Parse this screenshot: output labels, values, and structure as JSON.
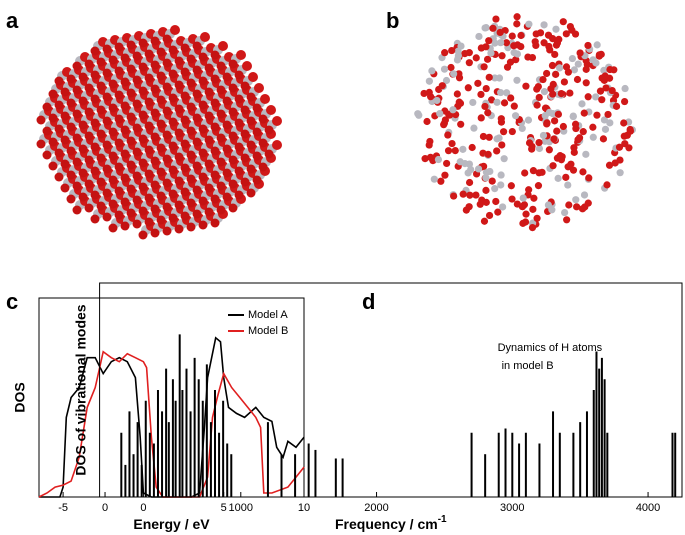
{
  "images": [
    {
      "panel_label": "a"
    },
    {
      "panel_label": "b"
    }
  ],
  "chart_data": [
    {
      "type": "line",
      "panel_label": "c",
      "xlabel": "Energy / eV",
      "ylabel": "DOS",
      "xlim": [
        -6.5,
        10
      ],
      "ylim": [
        0,
        1
      ],
      "xticks": [
        -5,
        0,
        5,
        10
      ],
      "legend": "top-right",
      "series": [
        {
          "name": "Model A",
          "color": "#000000",
          "x": [
            -6.5,
            -5.2,
            -5,
            -4.8,
            -4.5,
            -4,
            -3.5,
            -3,
            -2.5,
            -2,
            -1.5,
            -1,
            -0.5,
            -0.2,
            0,
            0.5,
            3,
            3.5,
            3.8,
            4,
            4.5,
            4.8,
            5,
            5.3,
            5.8,
            6.3,
            7,
            7.5,
            8,
            8.3,
            8.7,
            9,
            9.5,
            10
          ],
          "values": [
            0,
            0,
            0.05,
            0.4,
            0.5,
            0.55,
            0.7,
            0.7,
            0.62,
            0.68,
            0.7,
            0.68,
            0.6,
            0.3,
            0.02,
            0,
            0,
            0.02,
            0.35,
            0.6,
            0.8,
            0.78,
            0.6,
            0.45,
            0.42,
            0.4,
            0.45,
            0.4,
            0.38,
            0.25,
            0.2,
            0.28,
            0.25,
            0.3
          ]
        },
        {
          "name": "Model B",
          "color": "#e02020",
          "x": [
            -6.5,
            -6,
            -5.5,
            -5,
            -4.5,
            -4,
            -3.5,
            -3,
            -2.5,
            -2,
            -1.5,
            -1,
            -0.5,
            0,
            0.2,
            0.5,
            0.8,
            1.2,
            3.5,
            4,
            4.3,
            4.6,
            5,
            5.5,
            6,
            6.5,
            7,
            7.3,
            7.5,
            8,
            9,
            9.5,
            10
          ],
          "values": [
            0,
            0.02,
            0.05,
            0.06,
            0.08,
            0.2,
            0.45,
            0.55,
            0.73,
            0.7,
            0.68,
            0.72,
            0.7,
            0.68,
            0.65,
            0.3,
            0.05,
            0,
            0,
            0.1,
            0.4,
            0.5,
            0.62,
            0.55,
            0.5,
            0.45,
            0.4,
            0.35,
            0.02,
            0.02,
            0.05,
            0.1,
            0.15
          ]
        }
      ]
    },
    {
      "type": "stick",
      "panel_label": "d",
      "xlabel": "Frequency / cm",
      "xlabel_superscript": "-1",
      "ylabel": "DOS of vibrational modes",
      "annotation": [
        "Dynamics of H atoms",
        "in model B"
      ],
      "xlim": [
        -40,
        4250
      ],
      "ylim": [
        0,
        1
      ],
      "xticks": [
        0,
        1000,
        2000,
        3000,
        4000
      ],
      "color": "#000000",
      "x": [
        120,
        150,
        180,
        210,
        240,
        270,
        300,
        330,
        360,
        390,
        420,
        450,
        470,
        500,
        520,
        550,
        570,
        600,
        630,
        660,
        690,
        720,
        750,
        780,
        810,
        840,
        870,
        900,
        930,
        1200,
        1300,
        1400,
        1500,
        1550,
        1700,
        1750,
        2700,
        2800,
        2900,
        2950,
        3000,
        3050,
        3100,
        3200,
        3300,
        3350,
        3450,
        3500,
        3550,
        3600,
        3620,
        3640,
        3660,
        3680,
        3700,
        4180,
        4200
      ],
      "values": [
        0.3,
        0.15,
        0.4,
        0.2,
        0.35,
        0.15,
        0.45,
        0.3,
        0.25,
        0.5,
        0.4,
        0.6,
        0.35,
        0.55,
        0.45,
        0.76,
        0.5,
        0.6,
        0.4,
        0.65,
        0.55,
        0.45,
        0.62,
        0.35,
        0.5,
        0.3,
        0.45,
        0.25,
        0.2,
        0.35,
        0.2,
        0.2,
        0.25,
        0.22,
        0.18,
        0.18,
        0.3,
        0.2,
        0.3,
        0.32,
        0.3,
        0.25,
        0.3,
        0.25,
        0.4,
        0.3,
        0.3,
        0.35,
        0.4,
        0.5,
        0.68,
        0.6,
        0.65,
        0.55,
        0.3,
        0.3,
        0.3
      ]
    }
  ]
}
